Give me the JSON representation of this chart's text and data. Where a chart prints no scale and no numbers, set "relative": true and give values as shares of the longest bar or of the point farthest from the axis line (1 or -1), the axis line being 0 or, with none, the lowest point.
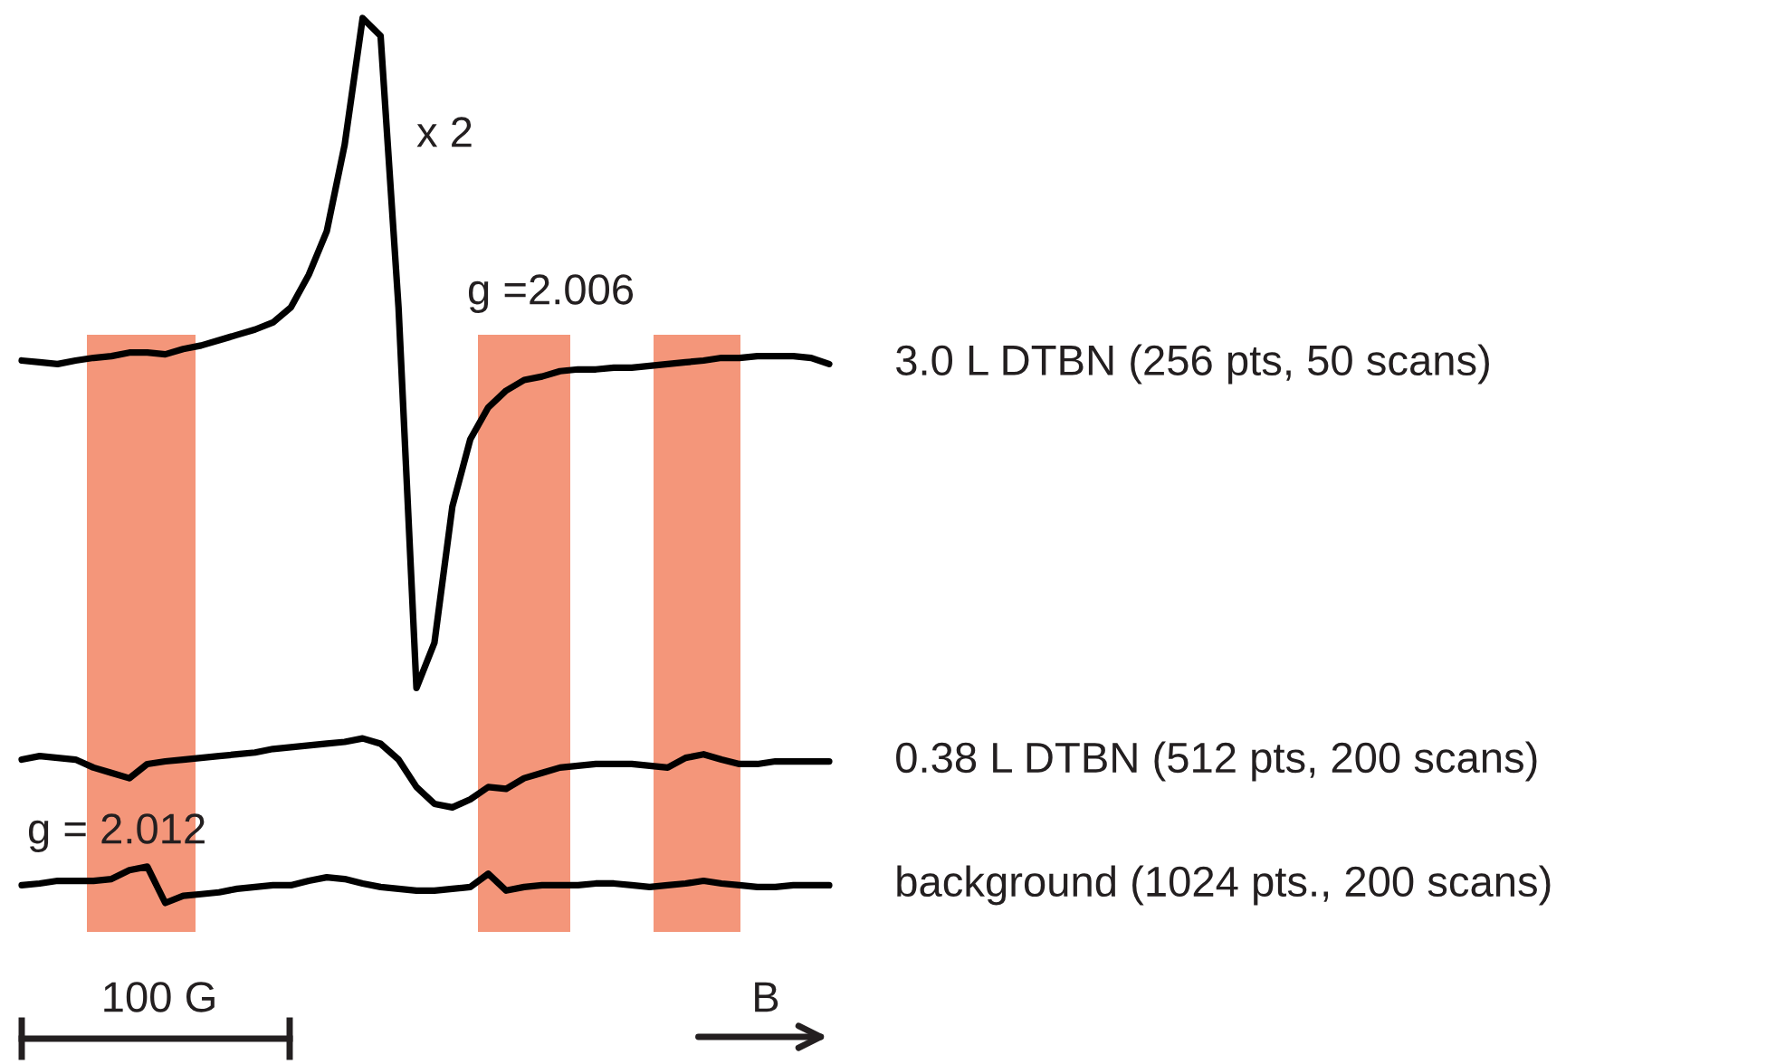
{
  "chart_data": {
    "type": "line",
    "relative": true,
    "marker": "none",
    "line_style": "solid",
    "categories": [
      null,
      null,
      null,
      null,
      null,
      null,
      null,
      null,
      null,
      null,
      null,
      null,
      null,
      null,
      null,
      null,
      null,
      null,
      null,
      null,
      null,
      null,
      null,
      null,
      null,
      null,
      null,
      null,
      null,
      null,
      null,
      null,
      null,
      null,
      null,
      null,
      null,
      null,
      null,
      null,
      null,
      null,
      null,
      null,
      null,
      null
    ],
    "series": [
      {
        "name": "3.0 L DTBN (256 pts, 50 scans)",
        "color": "#000000",
        "values": [
          0.613,
          0.611,
          0.609,
          0.613,
          0.616,
          0.618,
          0.622,
          0.622,
          0.62,
          0.626,
          0.63,
          0.636,
          0.642,
          0.648,
          0.656,
          0.673,
          0.71,
          0.759,
          0.857,
          1.0,
          0.98,
          0.673,
          0.243,
          0.294,
          0.448,
          0.524,
          0.56,
          0.579,
          0.591,
          0.595,
          0.601,
          0.603,
          0.603,
          0.605,
          0.605,
          0.607,
          0.609,
          0.611,
          0.613,
          0.616,
          0.616,
          0.618,
          0.618,
          0.618,
          0.616,
          0.609
        ]
      },
      {
        "name": "0.38 L DTBN (512 pts, 200 scans)",
        "color": "#000000",
        "values": [
          0.162,
          0.166,
          0.164,
          0.162,
          0.153,
          0.147,
          0.141,
          0.157,
          0.16,
          0.162,
          0.164,
          0.166,
          0.168,
          0.17,
          0.174,
          0.176,
          0.178,
          0.18,
          0.182,
          0.186,
          0.18,
          0.162,
          0.131,
          0.112,
          0.108,
          0.117,
          0.131,
          0.129,
          0.141,
          0.147,
          0.153,
          0.155,
          0.157,
          0.157,
          0.157,
          0.155,
          0.153,
          0.164,
          0.168,
          0.162,
          0.157,
          0.157,
          0.16,
          0.16,
          0.16,
          0.16
        ]
      },
      {
        "name": "background (1024 pts., 200 scans)",
        "color": "#000000",
        "values": [
          0.02,
          0.022,
          0.025,
          0.025,
          0.025,
          0.027,
          0.037,
          0.041,
          0.0,
          0.008,
          0.01,
          0.012,
          0.016,
          0.018,
          0.02,
          0.02,
          0.025,
          0.029,
          0.027,
          0.022,
          0.018,
          0.016,
          0.014,
          0.014,
          0.016,
          0.018,
          0.033,
          0.014,
          0.018,
          0.02,
          0.02,
          0.02,
          0.022,
          0.022,
          0.02,
          0.018,
          0.02,
          0.022,
          0.025,
          0.022,
          0.02,
          0.018,
          0.018,
          0.02,
          0.02,
          0.02
        ]
      }
    ],
    "annotations": [
      "x 2",
      "g =2.006",
      "g = 2.012",
      "100 G",
      "B"
    ]
  }
}
